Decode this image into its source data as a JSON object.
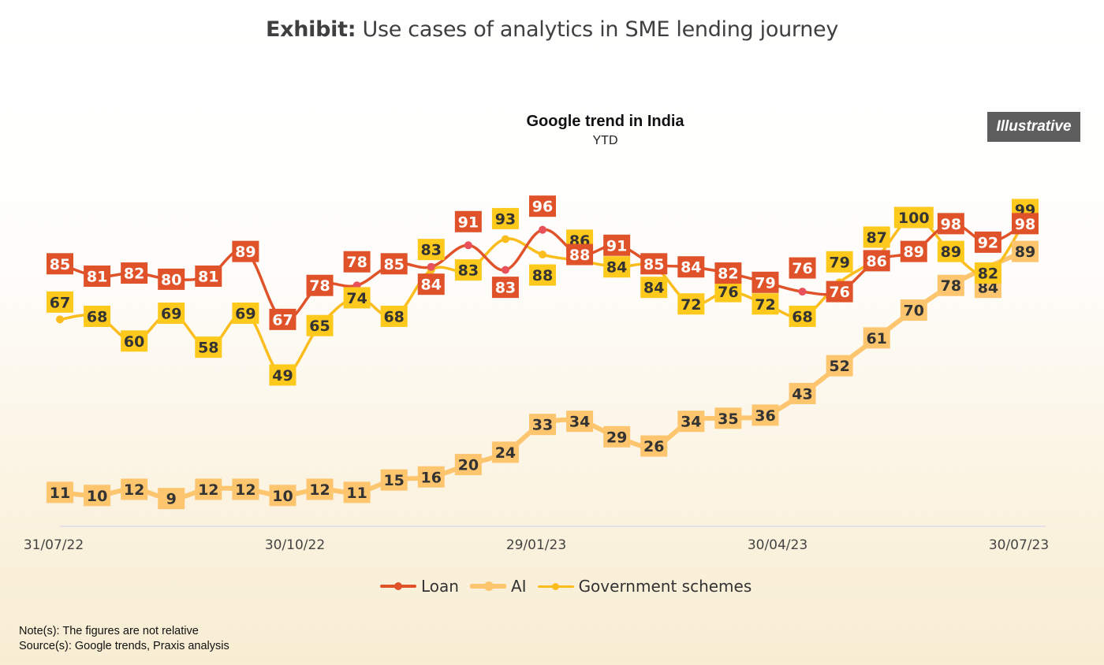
{
  "exhibit": {
    "prefix": "Exhibit:",
    "title": " Use cases of analytics in SME lending journey"
  },
  "badge": "Illustrative",
  "footnotes": {
    "note": "Note(s): The figures are not relative",
    "source": "Source(s): Google trends, Praxis analysis"
  },
  "chart_data": {
    "type": "line",
    "title": "Google trend in India",
    "subtitle": "YTD",
    "xlabel": "",
    "ylabel": "",
    "ylim": [
      0,
      100
    ],
    "grid": false,
    "legend_position": "bottom",
    "x_tick_labels": [
      "31/07/22",
      "30/10/22",
      "29/01/23",
      "30/04/23",
      "30/07/23"
    ],
    "x_tick_indices": [
      0,
      6.5,
      13,
      19.5,
      26
    ],
    "n_points": 27,
    "series": [
      {
        "name": "Loan",
        "color": "#e0532a",
        "marker_color": "#e8505b",
        "label_bg": "#e0532a",
        "label_text_color": "#ffffff",
        "values": [
          85,
          81,
          82,
          80,
          81,
          89,
          67,
          78,
          78,
          85,
          84,
          91,
          83,
          96,
          88,
          91,
          85,
          84,
          82,
          79,
          76,
          76,
          86,
          89,
          98,
          92,
          98
        ]
      },
      {
        "name": "AI",
        "color": "#fcc56e",
        "marker_color": "#fcc56e",
        "label_bg": "#fcc56e",
        "label_text_color": "#333333",
        "values": [
          11,
          10,
          12,
          9,
          12,
          12,
          10,
          12,
          11,
          15,
          16,
          20,
          24,
          33,
          34,
          29,
          26,
          34,
          35,
          36,
          43,
          52,
          61,
          70,
          78,
          84,
          89
        ]
      },
      {
        "name": "Government schemes",
        "color": "#fbbd1d",
        "marker_color": "#fbbd1d",
        "label_bg": "#fdc91c",
        "label_text_color": "#333333",
        "values": [
          67,
          68,
          60,
          69,
          58,
          69,
          49,
          65,
          74,
          68,
          83,
          83,
          93,
          88,
          86,
          84,
          84,
          72,
          76,
          72,
          68,
          79,
          87,
          100,
          89,
          82,
          99
        ]
      }
    ]
  }
}
